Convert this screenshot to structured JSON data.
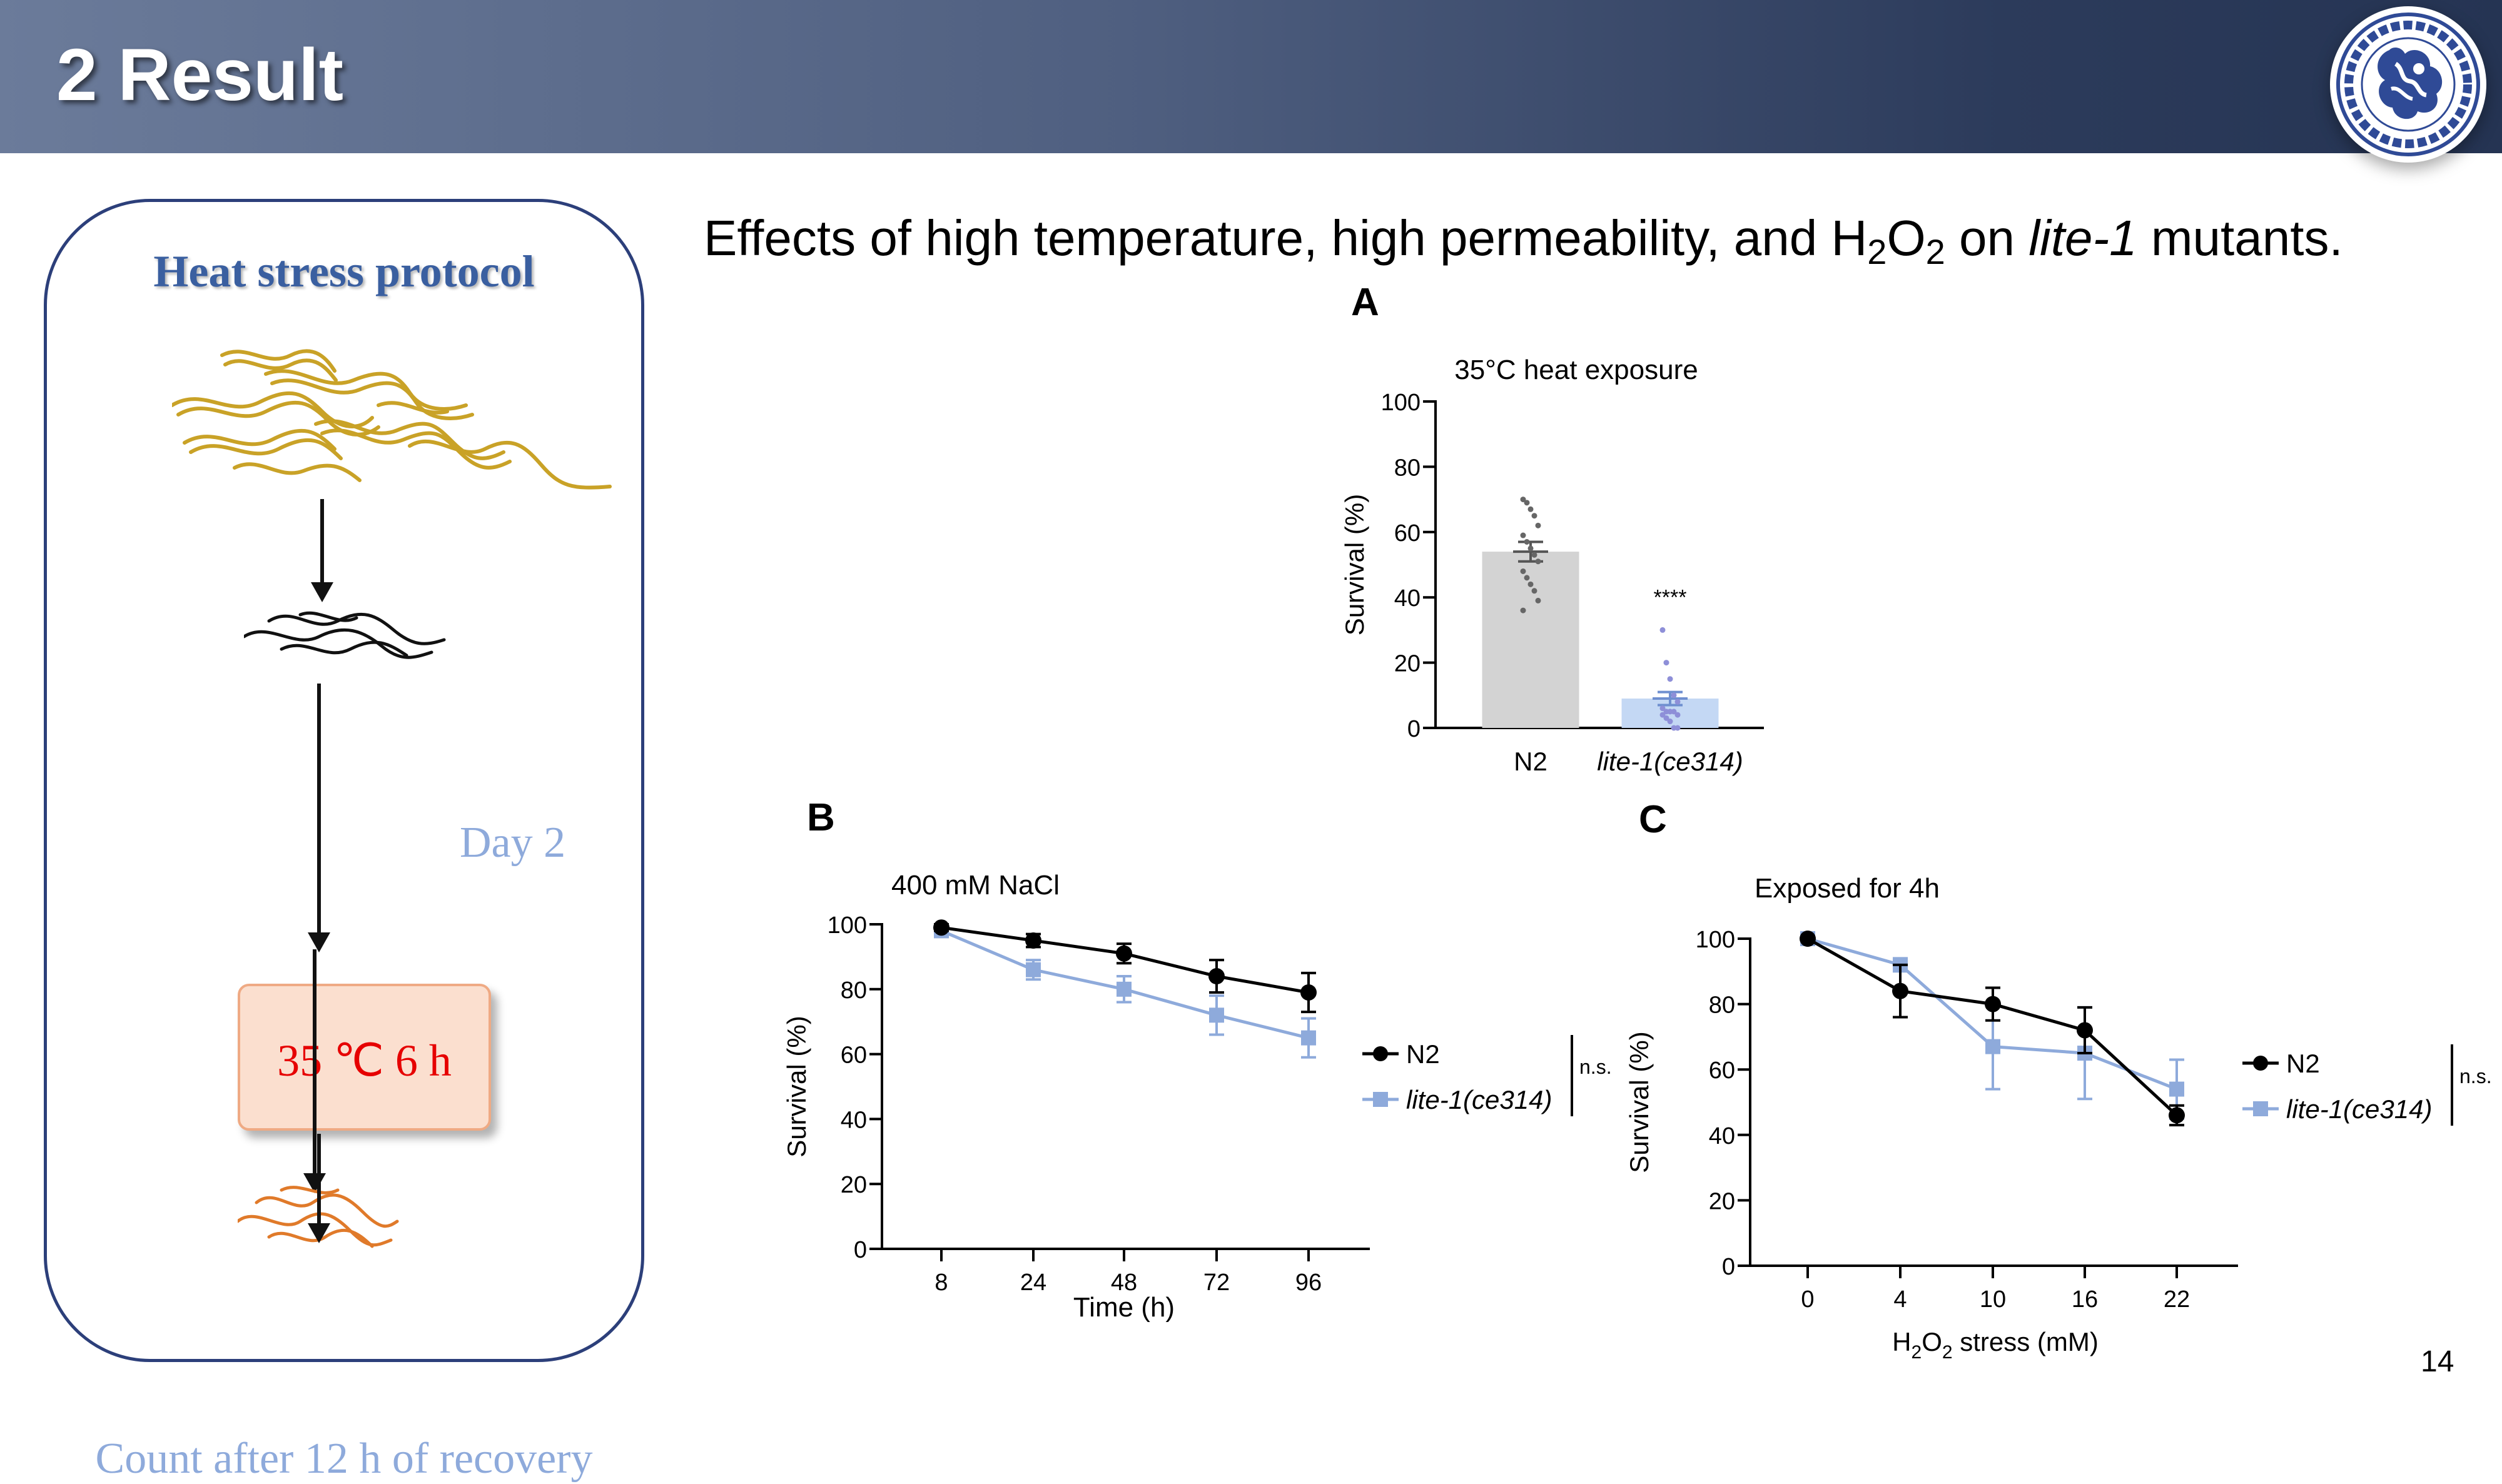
{
  "slide": {
    "title": "2 Result",
    "page_number": "14"
  },
  "protocol": {
    "title": "Heat stress protocol",
    "steps": {
      "day": "Day 2",
      "treatment": "35 ℃ 6 h",
      "count": "Count after 12 h of recovery"
    },
    "colors": {
      "adult_worms": "#c9a227",
      "day2_worms": "#111111",
      "treated_worms": "#e07a2a",
      "box_fill": "#fbdfcf",
      "treatment_text": "#e60000"
    }
  },
  "figure": {
    "title_before": "Effects of high temperature, high permeability, and H",
    "title_sub1": "2",
    "title_mid": "O",
    "title_sub2": "2",
    "title_after": " on ",
    "title_italic": "lite-1",
    "title_end": " mutants.",
    "panels": {
      "a": "A",
      "b": "B",
      "c": "C"
    }
  },
  "chart_data": [
    {
      "panel": "A",
      "type": "bar",
      "title": "35°C heat exposure",
      "xlabel": "",
      "ylabel": "Survival (%)",
      "ylim": [
        0,
        100
      ],
      "yticks": [
        0,
        20,
        40,
        60,
        80,
        100
      ],
      "categories": [
        "N2",
        "lite-1(ce314)"
      ],
      "values": [
        54,
        9
      ],
      "errors": [
        3,
        2
      ],
      "colors": [
        "#d3d3d3",
        "#c4d8f4"
      ],
      "significance": "****",
      "points": [
        [
          70,
          69,
          67,
          65,
          62,
          59,
          57,
          55,
          53,
          51,
          48,
          46,
          44,
          42,
          39,
          36
        ],
        [
          30,
          20,
          15,
          10,
          8,
          6,
          5,
          5,
          5,
          4,
          4,
          3,
          2,
          0,
          0
        ]
      ]
    },
    {
      "panel": "B",
      "type": "line",
      "title": "400 mM NaCl",
      "xlabel": "Time (h)",
      "ylabel": "Survival (%)",
      "ylim": [
        0,
        100
      ],
      "yticks": [
        0,
        20,
        40,
        60,
        80,
        100
      ],
      "x": [
        8,
        24,
        48,
        72,
        96
      ],
      "series": [
        {
          "name": "N2",
          "values": [
            99,
            95,
            91,
            84,
            79
          ],
          "errors": [
            1,
            2,
            3,
            5,
            6
          ],
          "color": "#000000",
          "marker": "circle"
        },
        {
          "name": "lite-1(ce314)",
          "values": [
            98,
            86,
            80,
            72,
            65
          ],
          "errors": [
            1,
            3,
            4,
            6,
            6
          ],
          "color": "#8eaadb",
          "marker": "square"
        }
      ],
      "significance": "n.s."
    },
    {
      "panel": "C",
      "type": "line",
      "title": "Exposed for 4h",
      "xlabel": "H2O2 stress (mM)",
      "xlabel_parts": {
        "a": "H",
        "b": "2",
        "c": "O",
        "d": "2",
        "e": " stress (mM)"
      },
      "ylabel": "Survival (%)",
      "ylim": [
        0,
        100
      ],
      "yticks": [
        0,
        20,
        40,
        60,
        80,
        100
      ],
      "x": [
        0,
        4,
        10,
        16,
        22
      ],
      "series": [
        {
          "name": "N2",
          "values": [
            100,
            84,
            80,
            72,
            46
          ],
          "errors": [
            0,
            8,
            5,
            7,
            3
          ],
          "color": "#000000",
          "marker": "circle"
        },
        {
          "name": "lite-1(ce314)",
          "values": [
            100,
            92,
            67,
            65,
            54
          ],
          "errors": [
            0,
            2,
            13,
            14,
            9
          ],
          "color": "#8eaadb",
          "marker": "square"
        }
      ],
      "significance": "n.s."
    }
  ]
}
